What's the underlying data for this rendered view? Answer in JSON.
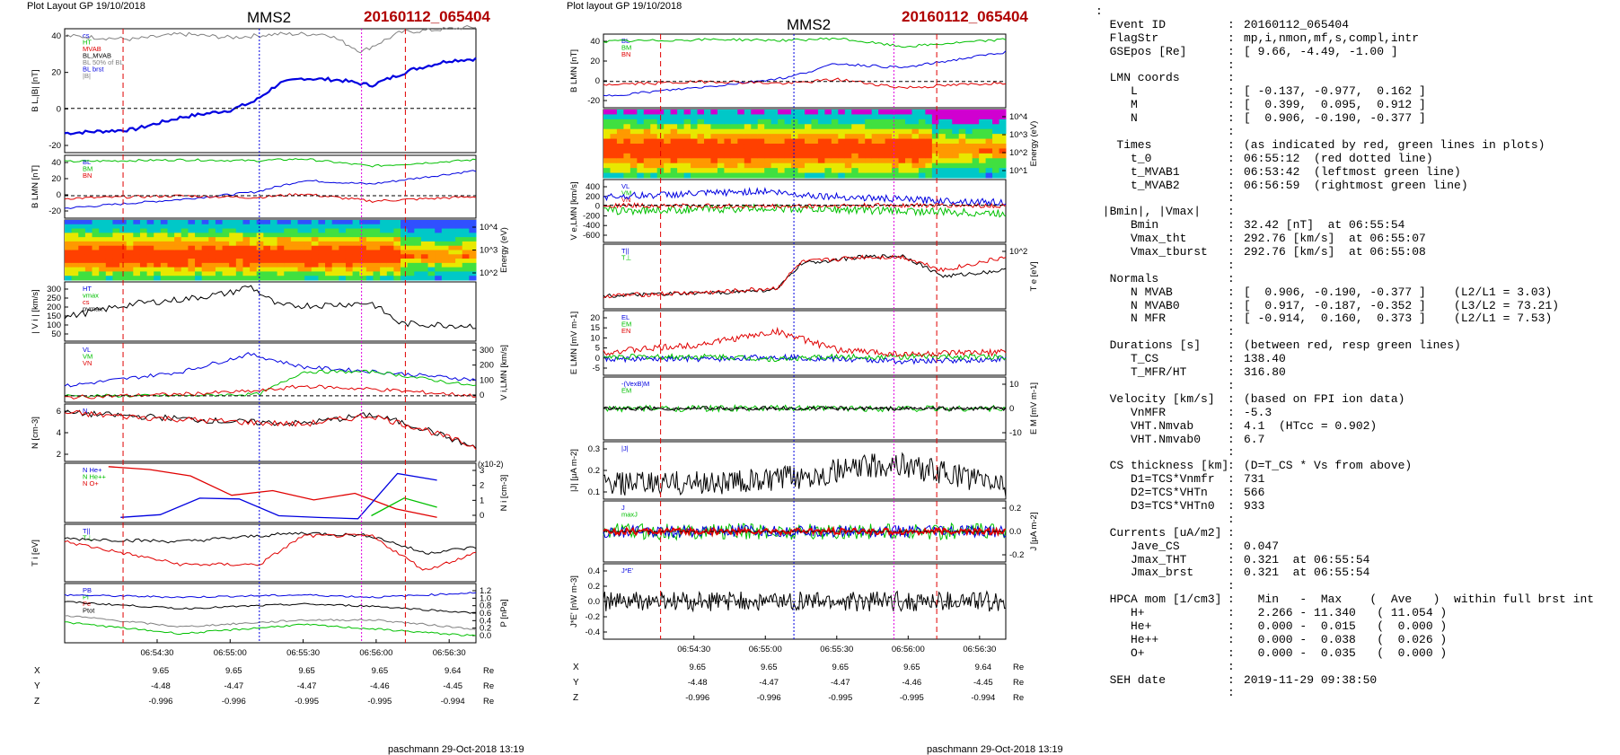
{
  "left_plot": {
    "header_left": "Plot Layout GP 19/10/2018",
    "title": "MMS2",
    "event": "20160112_065404",
    "footer": "paschmann 29-Oct-2018 13:19",
    "xticks": [
      "06:54:30",
      "06:55:00",
      "06:55:30",
      "06:56:00",
      "06:56:30"
    ],
    "pos_table": {
      "X": [
        "9.65",
        "9.65",
        "9.65",
        "9.65",
        "9.64"
      ],
      "Y": [
        "-4.48",
        "-4.47",
        "-4.47",
        "-4.46",
        "-4.45"
      ],
      "Z": [
        "-0.996",
        "-0.996",
        "-0.995",
        "-0.995",
        "-0.994"
      ],
      "unit": "Re"
    },
    "panels": [
      {
        "ylabel": "B L,|B| [nT]",
        "yticks": [
          "40",
          "20",
          "0",
          "-20"
        ],
        "legend": [
          "cs",
          "HT",
          "MVAB",
          "BL,MVAB",
          "BL 50% of BL",
          "BL brst",
          "|B|"
        ]
      },
      {
        "ylabel": "B LMN [nT]",
        "yticks": [
          "40",
          "20",
          "0",
          "-20"
        ],
        "legend": [
          "BL",
          "BM",
          "BN"
        ]
      },
      {
        "ylabel_right": "Energy (eV)",
        "yticks_right": [
          "10^4",
          "10^3",
          "10^2"
        ]
      },
      {
        "ylabel": "| V i | [km/s]",
        "yticks": [
          "300",
          "250",
          "200",
          "150",
          "100",
          "50"
        ],
        "legend": [
          "HT",
          "vmax",
          "cs",
          "pvmax"
        ]
      },
      {
        "ylabel_right": "V i,LMN [km/s]",
        "yticks_right": [
          "300",
          "200",
          "100",
          "0"
        ],
        "legend": [
          "VL",
          "VM",
          "VN"
        ]
      },
      {
        "ylabel": "N [cm-3]",
        "yticks": [
          "6",
          "4",
          "2"
        ],
        "legend": [
          "N"
        ]
      },
      {
        "ylabel_right": "N i [cm-3]",
        "yticks_right": [
          "3",
          "2",
          "1",
          "0"
        ],
        "scale_note": "(x10-2)",
        "legend": [
          "N He+",
          "N He++",
          "N O+"
        ]
      },
      {
        "ylabel": "T i [eV]",
        "yticks": [],
        "legend": [
          "T||",
          "T⊥"
        ]
      },
      {
        "ylabel_right": "P [nPa]",
        "yticks_right": [
          "1.2",
          "1.0",
          "0.8",
          "0.6",
          "0.4",
          "0.2",
          "0.0"
        ],
        "legend": [
          "PB",
          "Pi",
          "Pe",
          "Ptot"
        ]
      }
    ]
  },
  "center_plot": {
    "header_left": "Plot layout GP 19/10/2018",
    "title": "MMS2",
    "event": "20160112_065404",
    "footer": "paschmann 29-Oct-2018 13:19",
    "xticks": [
      "06:54:30",
      "06:55:00",
      "06:55:30",
      "06:56:00",
      "06:56:30"
    ],
    "pos_table": {
      "X": [
        "9.65",
        "9.65",
        "9.65",
        "9.65",
        "9.64"
      ],
      "Y": [
        "-4.48",
        "-4.47",
        "-4.47",
        "-4.46",
        "-4.45"
      ],
      "Z": [
        "-0.996",
        "-0.996",
        "-0.995",
        "-0.995",
        "-0.994"
      ],
      "unit": "Re"
    },
    "panels": [
      {
        "ylabel": "B LMN [nT]",
        "yticks": [
          "40",
          "20",
          "0",
          "-20"
        ],
        "legend": [
          "BL",
          "BM",
          "BN"
        ]
      },
      {
        "ylabel_right": "Energy (eV)",
        "yticks_right": [
          "10^4",
          "10^3",
          "10^2",
          "10^1"
        ]
      },
      {
        "ylabel": "V e,LMN [km/s]",
        "yticks": [
          "400",
          "200",
          "0",
          "-200",
          "-400",
          "-600"
        ],
        "legend": [
          "VL",
          "VM",
          "VN"
        ]
      },
      {
        "ylabel_right": "T e [eV]",
        "yticks_right": [
          "10^2"
        ],
        "legend": [
          "T||",
          "T⊥"
        ]
      },
      {
        "ylabel": "E LMN [mV m-1]",
        "yticks": [
          "20",
          "15",
          "10",
          "5",
          "0",
          "-5"
        ],
        "legend": [
          "EL",
          "EM",
          "EN"
        ]
      },
      {
        "ylabel_right": "E M [mV m-1]",
        "yticks_right": [
          "10",
          "0",
          "-10"
        ],
        "legend": [
          "-(VexB)M",
          "EM"
        ]
      },
      {
        "ylabel": "|J| [μA m-2]",
        "yticks": [
          "0.3",
          "0.2",
          "0.1"
        ],
        "legend": [
          "|J|"
        ]
      },
      {
        "ylabel_right": "J [μA m-2]",
        "yticks_right": [
          "0.2",
          "0.0",
          "-0.2"
        ],
        "legend": [
          "J",
          "maxJ"
        ]
      },
      {
        "ylabel": "J*E' [nW m-3]",
        "yticks": [
          "0.4",
          "0.2",
          "0.0",
          "-0.2",
          "-0.4"
        ],
        "legend": [
          "J*E'"
        ]
      }
    ]
  },
  "summary_lines": [
    {
      "k": ":",
      "c": "",
      "v": ""
    },
    {
      "k": "  Event ID",
      "c": ":",
      "v": "20160112_065404"
    },
    {
      "k": "  FlagStr",
      "c": ":",
      "v": "mp,i,nmon,mf,s,compl,intr"
    },
    {
      "k": "  GSEpos [Re]",
      "c": ":",
      "v": "[ 9.66, -4.49, -1.00 ]"
    },
    {
      "k": "",
      "c": ":",
      "v": ""
    },
    {
      "k": "  LMN coords",
      "c": ":",
      "v": ""
    },
    {
      "k": "     L",
      "c": ":",
      "v": "[ -0.137, -0.977,  0.162 ]"
    },
    {
      "k": "     M",
      "c": ":",
      "v": "[  0.399,  0.095,  0.912 ]"
    },
    {
      "k": "     N",
      "c": ":",
      "v": "[  0.906, -0.190, -0.377 ]"
    },
    {
      "k": "",
      "c": ":",
      "v": ""
    },
    {
      "k": "   Times",
      "c": ":",
      "v": "(as indicated by red, green lines in plots)"
    },
    {
      "k": "     t_0",
      "c": ":",
      "v": "06:55:12  (red dotted line)"
    },
    {
      "k": "     t_MVAB1",
      "c": ":",
      "v": "06:53:42  (leftmost green line)"
    },
    {
      "k": "     t_MVAB2",
      "c": ":",
      "v": "06:56:59  (rightmost green line)"
    },
    {
      "k": "",
      "c": ":",
      "v": ""
    },
    {
      "k": " |Bmin|, |Vmax|",
      "c": ":",
      "v": ""
    },
    {
      "k": "     Bmin",
      "c": ":",
      "v": "32.42 [nT]  at 06:55:54"
    },
    {
      "k": "     Vmax_tht",
      "c": ":",
      "v": "292.76 [km/s]  at 06:55:07"
    },
    {
      "k": "     Vmax_tburst",
      "c": ":",
      "v": "292.76 [km/s]  at 06:55:08"
    },
    {
      "k": "",
      "c": ":",
      "v": ""
    },
    {
      "k": "  Normals",
      "c": ":",
      "v": ""
    },
    {
      "k": "     N MVAB",
      "c": ":",
      "v": "[  0.906, -0.190, -0.377 ]    (L2/L1 = 3.03)"
    },
    {
      "k": "     N MVAB0",
      "c": ":",
      "v": "[  0.917, -0.187, -0.352 ]    (L3/L2 = 73.21)"
    },
    {
      "k": "     N MFR",
      "c": ":",
      "v": "[ -0.914,  0.160,  0.373 ]    (L2/L1 = 7.53)"
    },
    {
      "k": "",
      "c": ":",
      "v": ""
    },
    {
      "k": "  Durations [s]",
      "c": ":",
      "v": "(between red, resp green lines)"
    },
    {
      "k": "     T_CS",
      "c": ":",
      "v": "138.40"
    },
    {
      "k": "     T_MFR/HT",
      "c": ":",
      "v": "316.80"
    },
    {
      "k": "",
      "c": ":",
      "v": ""
    },
    {
      "k": "  Velocity [km/s]",
      "c": ":",
      "v": "(based on FPI ion data)"
    },
    {
      "k": "     VnMFR",
      "c": ":",
      "v": "-5.3"
    },
    {
      "k": "     VHT.Nmvab",
      "c": ":",
      "v": "4.1  (HTcc = 0.902)"
    },
    {
      "k": "     VHT.Nmvab0",
      "c": ":",
      "v": "6.7"
    },
    {
      "k": "",
      "c": ":",
      "v": ""
    },
    {
      "k": "  CS thickness [km]",
      "c": ":",
      "v": "(D=T_CS * Vs from above)"
    },
    {
      "k": "     D1=TCS*Vnmfr",
      "c": ":",
      "v": "731"
    },
    {
      "k": "     D2=TCS*VHTn",
      "c": ":",
      "v": "566"
    },
    {
      "k": "     D3=TCS*VHTn0",
      "c": ":",
      "v": "933"
    },
    {
      "k": "",
      "c": ":",
      "v": ""
    },
    {
      "k": "  Currents [uA/m2]",
      "c": ":",
      "v": ""
    },
    {
      "k": "     Jave_CS",
      "c": ":",
      "v": "0.047"
    },
    {
      "k": "     Jmax_THT",
      "c": ":",
      "v": "0.321  at 06:55:54"
    },
    {
      "k": "     Jmax_brst",
      "c": ":",
      "v": "0.321  at 06:55:54"
    },
    {
      "k": "",
      "c": ":",
      "v": ""
    },
    {
      "k": "  HPCA mom [1/cm3]",
      "c": ":",
      "v": "  Min   -  Max    (  Ave   )  within full brst int"
    },
    {
      "k": "     H+",
      "c": ":",
      "v": "  2.266 - 11.340   ( 11.054 )"
    },
    {
      "k": "     He+",
      "c": ":",
      "v": "  0.000 -  0.015   (  0.000 )"
    },
    {
      "k": "     He++",
      "c": ":",
      "v": "  0.000 -  0.038   (  0.026 )"
    },
    {
      "k": "     O+",
      "c": ":",
      "v": "  0.000 -  0.035   (  0.000 )"
    },
    {
      "k": "",
      "c": ":",
      "v": ""
    },
    {
      "k": "  SEH date",
      "c": ":",
      "v": "2019-11-29 09:38:50"
    },
    {
      "k": "",
      "c": ":",
      "v": ""
    }
  ],
  "colors": {
    "red": "#e00000",
    "green": "#00c000",
    "blue": "#0000e0",
    "black": "#000000",
    "grey": "#808080",
    "magenta": "#e000e0",
    "cyan": "#00c0c0",
    "title_red": "#b00000"
  },
  "chart_data": [
    {
      "type": "line",
      "title": "MMS2",
      "xlabel": "",
      "x_ticks": [
        "06:54:30",
        "06:55:00",
        "06:55:30",
        "06:56:00",
        "06:56:30"
      ],
      "panels": [
        {
          "ylabel": "B L,|B| [nT]",
          "ylim": [
            -25,
            45
          ],
          "series": [
            {
              "name": "BL brst",
              "color": "blue",
              "x": [
                "06:54:00",
                "06:54:20",
                "06:54:40",
                "06:55:00",
                "06:55:10",
                "06:55:20",
                "06:55:30",
                "06:55:45",
                "06:55:58",
                "06:56:15",
                "06:56:30",
                "06:56:40"
              ],
              "y": [
                -14,
                -12,
                -5,
                -1,
                4,
                14,
                17,
                16,
                13,
                22,
                27,
                28
              ]
            },
            {
              "name": "|B|",
              "color": "grey",
              "x": [
                "06:54:00",
                "06:54:20",
                "06:54:40",
                "06:55:00",
                "06:55:20",
                "06:55:40",
                "06:55:54",
                "06:56:10",
                "06:56:40"
              ],
              "y": [
                41,
                39,
                42,
                40,
                42,
                42,
                32,
                43,
                46
              ]
            }
          ]
        },
        {
          "ylabel": "B LMN [nT]",
          "ylim": [
            -25,
            45
          ],
          "series": [
            {
              "name": "BL",
              "color": "blue",
              "x": [
                "06:54:00",
                "06:54:40",
                "06:55:10",
                "06:55:30",
                "06:55:58",
                "06:56:40"
              ],
              "y": [
                -14,
                -4,
                4,
                17,
                13,
                28
              ]
            },
            {
              "name": "BM",
              "color": "green",
              "x": [
                "06:54:00",
                "06:54:40",
                "06:55:10",
                "06:55:30",
                "06:55:58",
                "06:56:40"
              ],
              "y": [
                38,
                40,
                39,
                41,
                33,
                40
              ]
            },
            {
              "name": "BN",
              "color": "red",
              "x": [
                "06:54:00",
                "06:54:40",
                "06:55:10",
                "06:55:30",
                "06:55:58",
                "06:56:40"
              ],
              "y": [
                -3,
                0,
                -2,
                2,
                -6,
                -1
              ]
            }
          ]
        },
        {
          "ylabel": "| V i | [km/s]",
          "ylim": [
            40,
            310
          ],
          "series": [
            {
              "name": "|Vi|",
              "color": "black",
              "x": [
                "06:54:00",
                "06:54:20",
                "06:54:40",
                "06:55:00",
                "06:55:08",
                "06:55:20",
                "06:55:40",
                "06:55:58",
                "06:56:10",
                "06:56:40"
              ],
              "y": [
                150,
                210,
                230,
                260,
                292,
                200,
                205,
                215,
                120,
                110
              ]
            }
          ]
        },
        {
          "ylabel": "N [cm-3]",
          "ylim": [
            0.5,
            7
          ],
          "series": [
            {
              "name": "N",
              "color": "black",
              "x": [
                "06:54:00",
                "06:54:30",
                "06:55:00",
                "06:55:30",
                "06:55:58",
                "06:56:20",
                "06:56:40"
              ],
              "y": [
                6,
                5.5,
                5,
                4.8,
                5.8,
                4.2,
                2
              ]
            }
          ]
        },
        {
          "ylabel": "N i [cm-3]",
          "scale": "x10-2",
          "ylim": [
            0,
            3.5
          ],
          "series": [
            {
              "name": "N He+",
              "color": "green",
              "x": [
                "06:55:58",
                "06:56:10",
                "06:56:25"
              ],
              "y": [
                0.4,
                1.5,
                0.9
              ]
            },
            {
              "name": "N He++",
              "color": "red",
              "x": [
                "06:54:10",
                "06:54:40",
                "06:54:55",
                "06:55:05",
                "06:55:20",
                "06:55:35",
                "06:55:58",
                "06:56:10",
                "06:56:25"
              ],
              "y": [
                3.5,
                3.0,
                2.0,
                1.3,
                2.0,
                1.3,
                1.9,
                0.6,
                0.3
              ]
            },
            {
              "name": "N O+",
              "color": "blue",
              "x": [
                "06:54:15",
                "06:54:35",
                "06:54:55",
                "06:55:05",
                "06:55:20",
                "06:55:35",
                "06:55:58",
                "06:56:10",
                "06:56:25"
              ],
              "y": [
                0.3,
                0.5,
                2.0,
                1.3,
                0.4,
                0.3,
                0.2,
                3.3,
                2.5
              ]
            }
          ]
        }
      ]
    },
    {
      "type": "line",
      "title": "MMS2",
      "xlabel": "",
      "x_ticks": [
        "06:54:30",
        "06:55:00",
        "06:55:30",
        "06:56:00",
        "06:56:30"
      ],
      "panels": [
        {
          "ylabel": "B LMN [nT]",
          "ylim": [
            -25,
            45
          ],
          "series": [
            {
              "name": "BL",
              "color": "blue",
              "x": [
                "06:54:00",
                "06:54:40",
                "06:55:10",
                "06:55:30",
                "06:55:58",
                "06:56:40"
              ],
              "y": [
                -14,
                -4,
                4,
                17,
                13,
                28
              ]
            },
            {
              "name": "BM",
              "color": "green",
              "x": [
                "06:54:00",
                "06:54:40",
                "06:55:10",
                "06:55:30",
                "06:55:58",
                "06:56:40"
              ],
              "y": [
                38,
                40,
                39,
                41,
                33,
                40
              ]
            },
            {
              "name": "BN",
              "color": "red",
              "x": [
                "06:54:00",
                "06:54:40",
                "06:55:10",
                "06:55:30",
                "06:55:58",
                "06:56:40"
              ],
              "y": [
                -3,
                0,
                -2,
                2,
                -6,
                -1
              ]
            }
          ]
        },
        {
          "ylabel": "V e,LMN [km/s]",
          "ylim": [
            -650,
            450
          ],
          "series": [
            {
              "name": "VL",
              "color": "blue",
              "x": [
                "06:54:00",
                "06:54:30",
                "06:55:00",
                "06:55:10",
                "06:55:30",
                "06:56:00",
                "06:56:40"
              ],
              "y": [
                150,
                200,
                250,
                200,
                150,
                100,
                50
              ]
            },
            {
              "name": "VM",
              "color": "green",
              "x": [
                "06:54:00",
                "06:55:00",
                "06:56:00",
                "06:56:40"
              ],
              "y": [
                -100,
                -50,
                -100,
                -150
              ]
            },
            {
              "name": "VN",
              "color": "red",
              "x": [
                "06:54:00",
                "06:55:00",
                "06:56:00",
                "06:56:40"
              ],
              "y": [
                0,
                -20,
                0,
                -10
              ]
            }
          ]
        },
        {
          "ylabel": "|J| [μA m-2]",
          "ylim": [
            0,
            0.32
          ],
          "series": [
            {
              "name": "|J|",
              "color": "black",
              "x": [
                "06:54:00",
                "06:55:00",
                "06:55:54",
                "06:56:40"
              ],
              "y": [
                0.08,
                0.1,
                0.32,
                0.08
              ]
            }
          ]
        }
      ]
    }
  ]
}
